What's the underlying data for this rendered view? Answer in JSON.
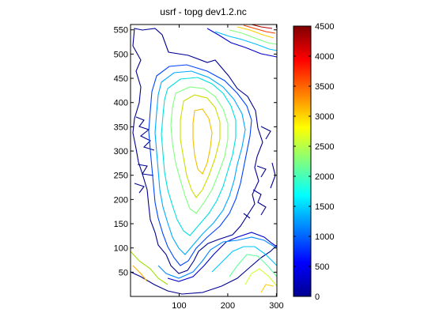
{
  "chart_data": {
    "type": "contour",
    "title": "usrf - topg dev1.2.nc",
    "xlim": [
      0,
      301
    ],
    "ylim": [
      0,
      561
    ],
    "xticks": [
      100,
      200,
      300
    ],
    "yticks": [
      50,
      100,
      150,
      200,
      250,
      300,
      350,
      400,
      450,
      500,
      550
    ],
    "colorbar": {
      "colormap": "jet",
      "clim": [
        0,
        4500
      ],
      "ticks": [
        0,
        500,
        1000,
        1500,
        2000,
        2500,
        3000,
        3500,
        4000,
        4500
      ]
    },
    "contour_levels": [
      0,
      500,
      1000,
      1500,
      2000,
      2500,
      3000
    ]
  }
}
